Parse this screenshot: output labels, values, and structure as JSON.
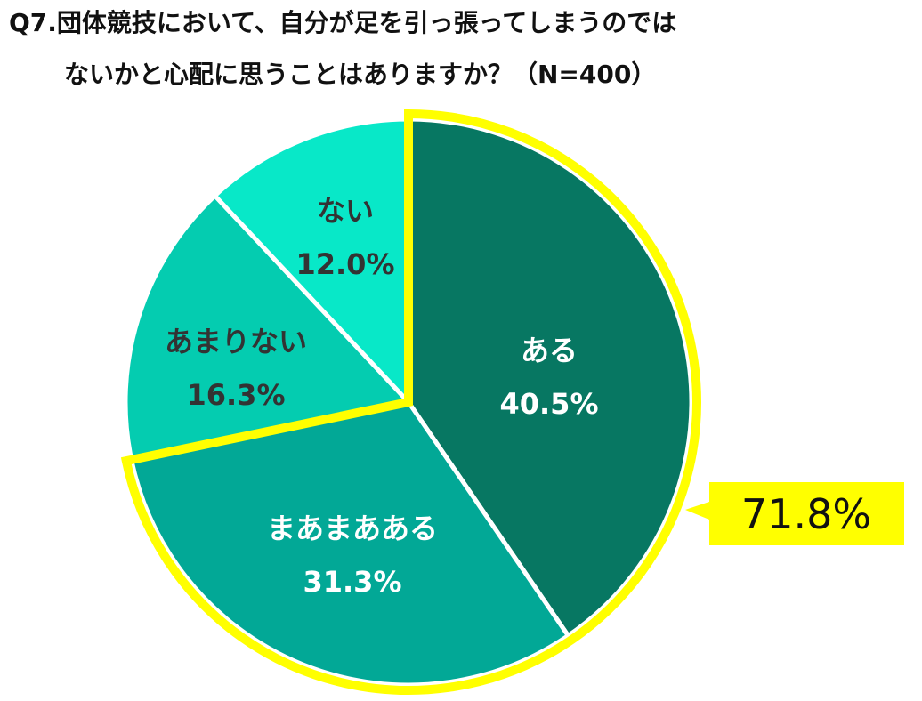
{
  "title": {
    "line1": "Q7.団体競技において、自分が足を引っ張ってしまうのでは",
    "line2": "ないかと心配に思うことはありますか？（N=400）"
  },
  "chart_data": {
    "type": "pie",
    "categories": [
      "ある",
      "まあまあある",
      "あまりない",
      "ない"
    ],
    "values": [
      40.5,
      31.3,
      16.3,
      12.0
    ],
    "value_labels": [
      "40.5%",
      "31.3%",
      "16.3%",
      "12.0%"
    ],
    "colors": [
      "#077762",
      "#02a896",
      "#04ccb0",
      "#08e8c8"
    ],
    "label_colors": [
      "#ffffff",
      "#ffffff",
      "#333333",
      "#333333"
    ],
    "highlight": {
      "categories": [
        "ある",
        "まあまあある"
      ],
      "total_label": "71.8%",
      "outline_color": "#ffff00"
    }
  }
}
